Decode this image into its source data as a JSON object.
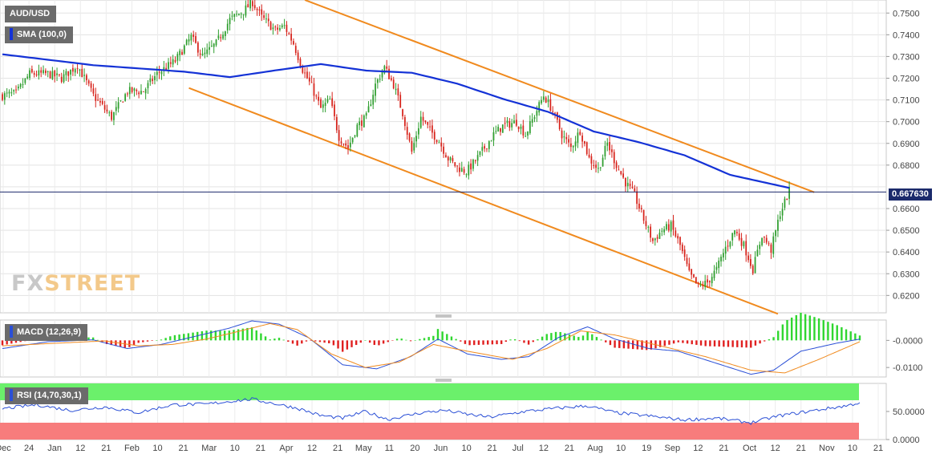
{
  "instrument": "AUD/USD",
  "watermark": {
    "left": "FX",
    "right": "STREET"
  },
  "colors": {
    "up": "#2e9e2e",
    "down": "#d7231b",
    "sma": "#1432d6",
    "channel": "#f08a1e",
    "macd_line": "#2a4fd6",
    "signal_line": "#f08a1e",
    "hist_up": "#2fd62f",
    "hist_down": "#e01f1f",
    "rsi_line": "#2a4fd6",
    "rsi_over": "#6bf06b",
    "rsi_under": "#f77c7c",
    "price_line": "#1b2a6b"
  },
  "indicators": {
    "sma_label": "SMA (100,0)",
    "macd_label": "MACD (12,26,9)",
    "rsi_label": "RSI (14,70,30,1)"
  },
  "last_price_label": "0.667630",
  "chart_data": [
    {
      "type": "candlestick",
      "title": "AUD/USD",
      "ylim": [
        0.612,
        0.756
      ],
      "yticks": [
        "0.7500",
        "0.7400",
        "0.7300",
        "0.7200",
        "0.7100",
        "0.7000",
        "0.6900",
        "0.6800",
        "0.6600",
        "0.6500",
        "0.6400",
        "0.6300",
        "0.6200"
      ],
      "x_labels": [
        "Dec",
        "24",
        "Jan",
        "12",
        "21",
        "Feb",
        "10",
        "21",
        "Mar",
        "10",
        "21",
        "Apr",
        "12",
        "21",
        "May",
        "11",
        "20",
        "Jun",
        "10",
        "21",
        "Jul",
        "12",
        "21",
        "Aug",
        "10",
        "19",
        "Sep",
        "12",
        "21",
        "Oct",
        "12",
        "21",
        "Nov",
        "10",
        "21"
      ],
      "grid": true,
      "last_price": 0.66763,
      "close_waypoints": [
        {
          "i": 0,
          "v": 0.712
        },
        {
          "i": 6,
          "v": 0.713
        },
        {
          "i": 12,
          "v": 0.722
        },
        {
          "i": 20,
          "v": 0.722
        },
        {
          "i": 26,
          "v": 0.72
        },
        {
          "i": 33,
          "v": 0.726
        },
        {
          "i": 40,
          "v": 0.712
        },
        {
          "i": 48,
          "v": 0.702
        },
        {
          "i": 55,
          "v": 0.714
        },
        {
          "i": 62,
          "v": 0.714
        },
        {
          "i": 68,
          "v": 0.722
        },
        {
          "i": 76,
          "v": 0.728
        },
        {
          "i": 83,
          "v": 0.739
        },
        {
          "i": 88,
          "v": 0.73
        },
        {
          "i": 94,
          "v": 0.736
        },
        {
          "i": 100,
          "v": 0.747
        },
        {
          "i": 106,
          "v": 0.751
        },
        {
          "i": 110,
          "v": 0.755
        },
        {
          "i": 114,
          "v": 0.748
        },
        {
          "i": 120,
          "v": 0.742
        },
        {
          "i": 124,
          "v": 0.744
        },
        {
          "i": 128,
          "v": 0.736
        },
        {
          "i": 132,
          "v": 0.724
        },
        {
          "i": 136,
          "v": 0.716
        },
        {
          "i": 140,
          "v": 0.706
        },
        {
          "i": 144,
          "v": 0.71
        },
        {
          "i": 148,
          "v": 0.693
        },
        {
          "i": 152,
          "v": 0.688
        },
        {
          "i": 156,
          "v": 0.698
        },
        {
          "i": 160,
          "v": 0.702
        },
        {
          "i": 164,
          "v": 0.717
        },
        {
          "i": 168,
          "v": 0.725
        },
        {
          "i": 172,
          "v": 0.717
        },
        {
          "i": 176,
          "v": 0.704
        },
        {
          "i": 180,
          "v": 0.686
        },
        {
          "i": 184,
          "v": 0.702
        },
        {
          "i": 188,
          "v": 0.696
        },
        {
          "i": 192,
          "v": 0.691
        },
        {
          "i": 196,
          "v": 0.683
        },
        {
          "i": 200,
          "v": 0.679
        },
        {
          "i": 204,
          "v": 0.677
        },
        {
          "i": 208,
          "v": 0.682
        },
        {
          "i": 212,
          "v": 0.688
        },
        {
          "i": 216,
          "v": 0.694
        },
        {
          "i": 220,
          "v": 0.698
        },
        {
          "i": 226,
          "v": 0.7
        },
        {
          "i": 230,
          "v": 0.694
        },
        {
          "i": 234,
          "v": 0.703
        },
        {
          "i": 238,
          "v": 0.712
        },
        {
          "i": 242,
          "v": 0.705
        },
        {
          "i": 246,
          "v": 0.694
        },
        {
          "i": 250,
          "v": 0.688
        },
        {
          "i": 254,
          "v": 0.696
        },
        {
          "i": 258,
          "v": 0.683
        },
        {
          "i": 262,
          "v": 0.678
        },
        {
          "i": 266,
          "v": 0.69
        },
        {
          "i": 270,
          "v": 0.68
        },
        {
          "i": 274,
          "v": 0.672
        },
        {
          "i": 278,
          "v": 0.666
        },
        {
          "i": 282,
          "v": 0.655
        },
        {
          "i": 286,
          "v": 0.645
        },
        {
          "i": 290,
          "v": 0.65
        },
        {
          "i": 294,
          "v": 0.652
        },
        {
          "i": 298,
          "v": 0.643
        },
        {
          "i": 302,
          "v": 0.63
        },
        {
          "i": 306,
          "v": 0.624
        },
        {
          "i": 310,
          "v": 0.626
        },
        {
          "i": 314,
          "v": 0.632
        },
        {
          "i": 318,
          "v": 0.642
        },
        {
          "i": 322,
          "v": 0.65
        },
        {
          "i": 326,
          "v": 0.643
        },
        {
          "i": 330,
          "v": 0.632
        },
        {
          "i": 334,
          "v": 0.648
        },
        {
          "i": 338,
          "v": 0.641
        },
        {
          "i": 342,
          "v": 0.658
        },
        {
          "i": 346,
          "v": 0.668
        }
      ],
      "sma_100_waypoints": [
        {
          "i": 0,
          "v": 0.731
        },
        {
          "i": 40,
          "v": 0.726
        },
        {
          "i": 80,
          "v": 0.723
        },
        {
          "i": 100,
          "v": 0.7205
        },
        {
          "i": 120,
          "v": 0.7236
        },
        {
          "i": 140,
          "v": 0.7265
        },
        {
          "i": 160,
          "v": 0.7235
        },
        {
          "i": 180,
          "v": 0.7225
        },
        {
          "i": 200,
          "v": 0.7175
        },
        {
          "i": 220,
          "v": 0.7105
        },
        {
          "i": 240,
          "v": 0.7045
        },
        {
          "i": 260,
          "v": 0.6955
        },
        {
          "i": 280,
          "v": 0.6905
        },
        {
          "i": 300,
          "v": 0.6845
        },
        {
          "i": 320,
          "v": 0.6755
        },
        {
          "i": 346,
          "v": 0.6695
        }
      ],
      "channel_upper": [
        {
          "i": 133,
          "v": 0.756
        },
        {
          "i": 357,
          "v": 0.6675
        }
      ],
      "channel_lower": [
        {
          "i": 82,
          "v": 0.7155
        },
        {
          "i": 341,
          "v": 0.6115
        }
      ]
    },
    {
      "type": "line",
      "title": "MACD (12,26,9)",
      "ylim": [
        -0.0135,
        0.0075
      ],
      "yticks": [
        "-0.0000",
        "-0.0100"
      ],
      "macd_waypoints": [
        {
          "i": 0,
          "v": -0.003
        },
        {
          "i": 20,
          "v": -0.0005
        },
        {
          "i": 40,
          "v": 0.0002
        },
        {
          "i": 55,
          "v": -0.003
        },
        {
          "i": 70,
          "v": -0.0015
        },
        {
          "i": 85,
          "v": 0.0015
        },
        {
          "i": 100,
          "v": 0.0045
        },
        {
          "i": 110,
          "v": 0.0072
        },
        {
          "i": 122,
          "v": 0.006
        },
        {
          "i": 135,
          "v": 0.001
        },
        {
          "i": 150,
          "v": -0.009
        },
        {
          "i": 165,
          "v": -0.0105
        },
        {
          "i": 180,
          "v": -0.006
        },
        {
          "i": 192,
          "v": 0.0005
        },
        {
          "i": 205,
          "v": -0.005
        },
        {
          "i": 220,
          "v": -0.007
        },
        {
          "i": 232,
          "v": -0.006
        },
        {
          "i": 245,
          "v": 0.001
        },
        {
          "i": 258,
          "v": 0.005
        },
        {
          "i": 270,
          "v": 0.0005
        },
        {
          "i": 285,
          "v": -0.003
        },
        {
          "i": 298,
          "v": -0.004
        },
        {
          "i": 315,
          "v": -0.0085
        },
        {
          "i": 330,
          "v": -0.0125
        },
        {
          "i": 340,
          "v": -0.011
        },
        {
          "i": 352,
          "v": -0.004
        },
        {
          "i": 368,
          "v": -0.001
        },
        {
          "i": 378,
          "v": 0.0005
        }
      ],
      "signal_waypoints": [
        {
          "i": 0,
          "v": -0.002
        },
        {
          "i": 25,
          "v": -0.001
        },
        {
          "i": 45,
          "v": -0.0002
        },
        {
          "i": 60,
          "v": -0.002
        },
        {
          "i": 75,
          "v": -0.0015
        },
        {
          "i": 90,
          "v": 0.0005
        },
        {
          "i": 105,
          "v": 0.0035
        },
        {
          "i": 118,
          "v": 0.0062
        },
        {
          "i": 130,
          "v": 0.004
        },
        {
          "i": 145,
          "v": -0.005
        },
        {
          "i": 160,
          "v": -0.01
        },
        {
          "i": 175,
          "v": -0.008
        },
        {
          "i": 190,
          "v": -0.0015
        },
        {
          "i": 205,
          "v": -0.004
        },
        {
          "i": 225,
          "v": -0.007
        },
        {
          "i": 240,
          "v": -0.003
        },
        {
          "i": 255,
          "v": 0.0035
        },
        {
          "i": 270,
          "v": 0.002
        },
        {
          "i": 290,
          "v": -0.002
        },
        {
          "i": 310,
          "v": -0.006
        },
        {
          "i": 330,
          "v": -0.011
        },
        {
          "i": 345,
          "v": -0.012
        },
        {
          "i": 360,
          "v": -0.007
        },
        {
          "i": 378,
          "v": -0.0005
        }
      ]
    },
    {
      "type": "line",
      "title": "RSI (14,70,30,1)",
      "ylim": [
        0,
        100
      ],
      "yticks": [
        "50.0000",
        "0.0000"
      ],
      "overbought": 70,
      "oversold": 30,
      "rsi_waypoints": [
        {
          "i": 0,
          "v": 55
        },
        {
          "i": 15,
          "v": 62
        },
        {
          "i": 30,
          "v": 52
        },
        {
          "i": 45,
          "v": 58
        },
        {
          "i": 60,
          "v": 48
        },
        {
          "i": 75,
          "v": 62
        },
        {
          "i": 90,
          "v": 63
        },
        {
          "i": 100,
          "v": 68
        },
        {
          "i": 110,
          "v": 72
        },
        {
          "i": 120,
          "v": 64
        },
        {
          "i": 130,
          "v": 56
        },
        {
          "i": 140,
          "v": 43
        },
        {
          "i": 150,
          "v": 38
        },
        {
          "i": 160,
          "v": 50
        },
        {
          "i": 170,
          "v": 36
        },
        {
          "i": 185,
          "v": 48
        },
        {
          "i": 195,
          "v": 52
        },
        {
          "i": 205,
          "v": 45
        },
        {
          "i": 215,
          "v": 40
        },
        {
          "i": 230,
          "v": 50
        },
        {
          "i": 245,
          "v": 56
        },
        {
          "i": 258,
          "v": 60
        },
        {
          "i": 270,
          "v": 48
        },
        {
          "i": 285,
          "v": 42
        },
        {
          "i": 300,
          "v": 35
        },
        {
          "i": 315,
          "v": 38
        },
        {
          "i": 330,
          "v": 30
        },
        {
          "i": 342,
          "v": 42
        },
        {
          "i": 355,
          "v": 50
        },
        {
          "i": 365,
          "v": 56
        },
        {
          "i": 372,
          "v": 60
        },
        {
          "i": 378,
          "v": 66
        }
      ]
    }
  ]
}
